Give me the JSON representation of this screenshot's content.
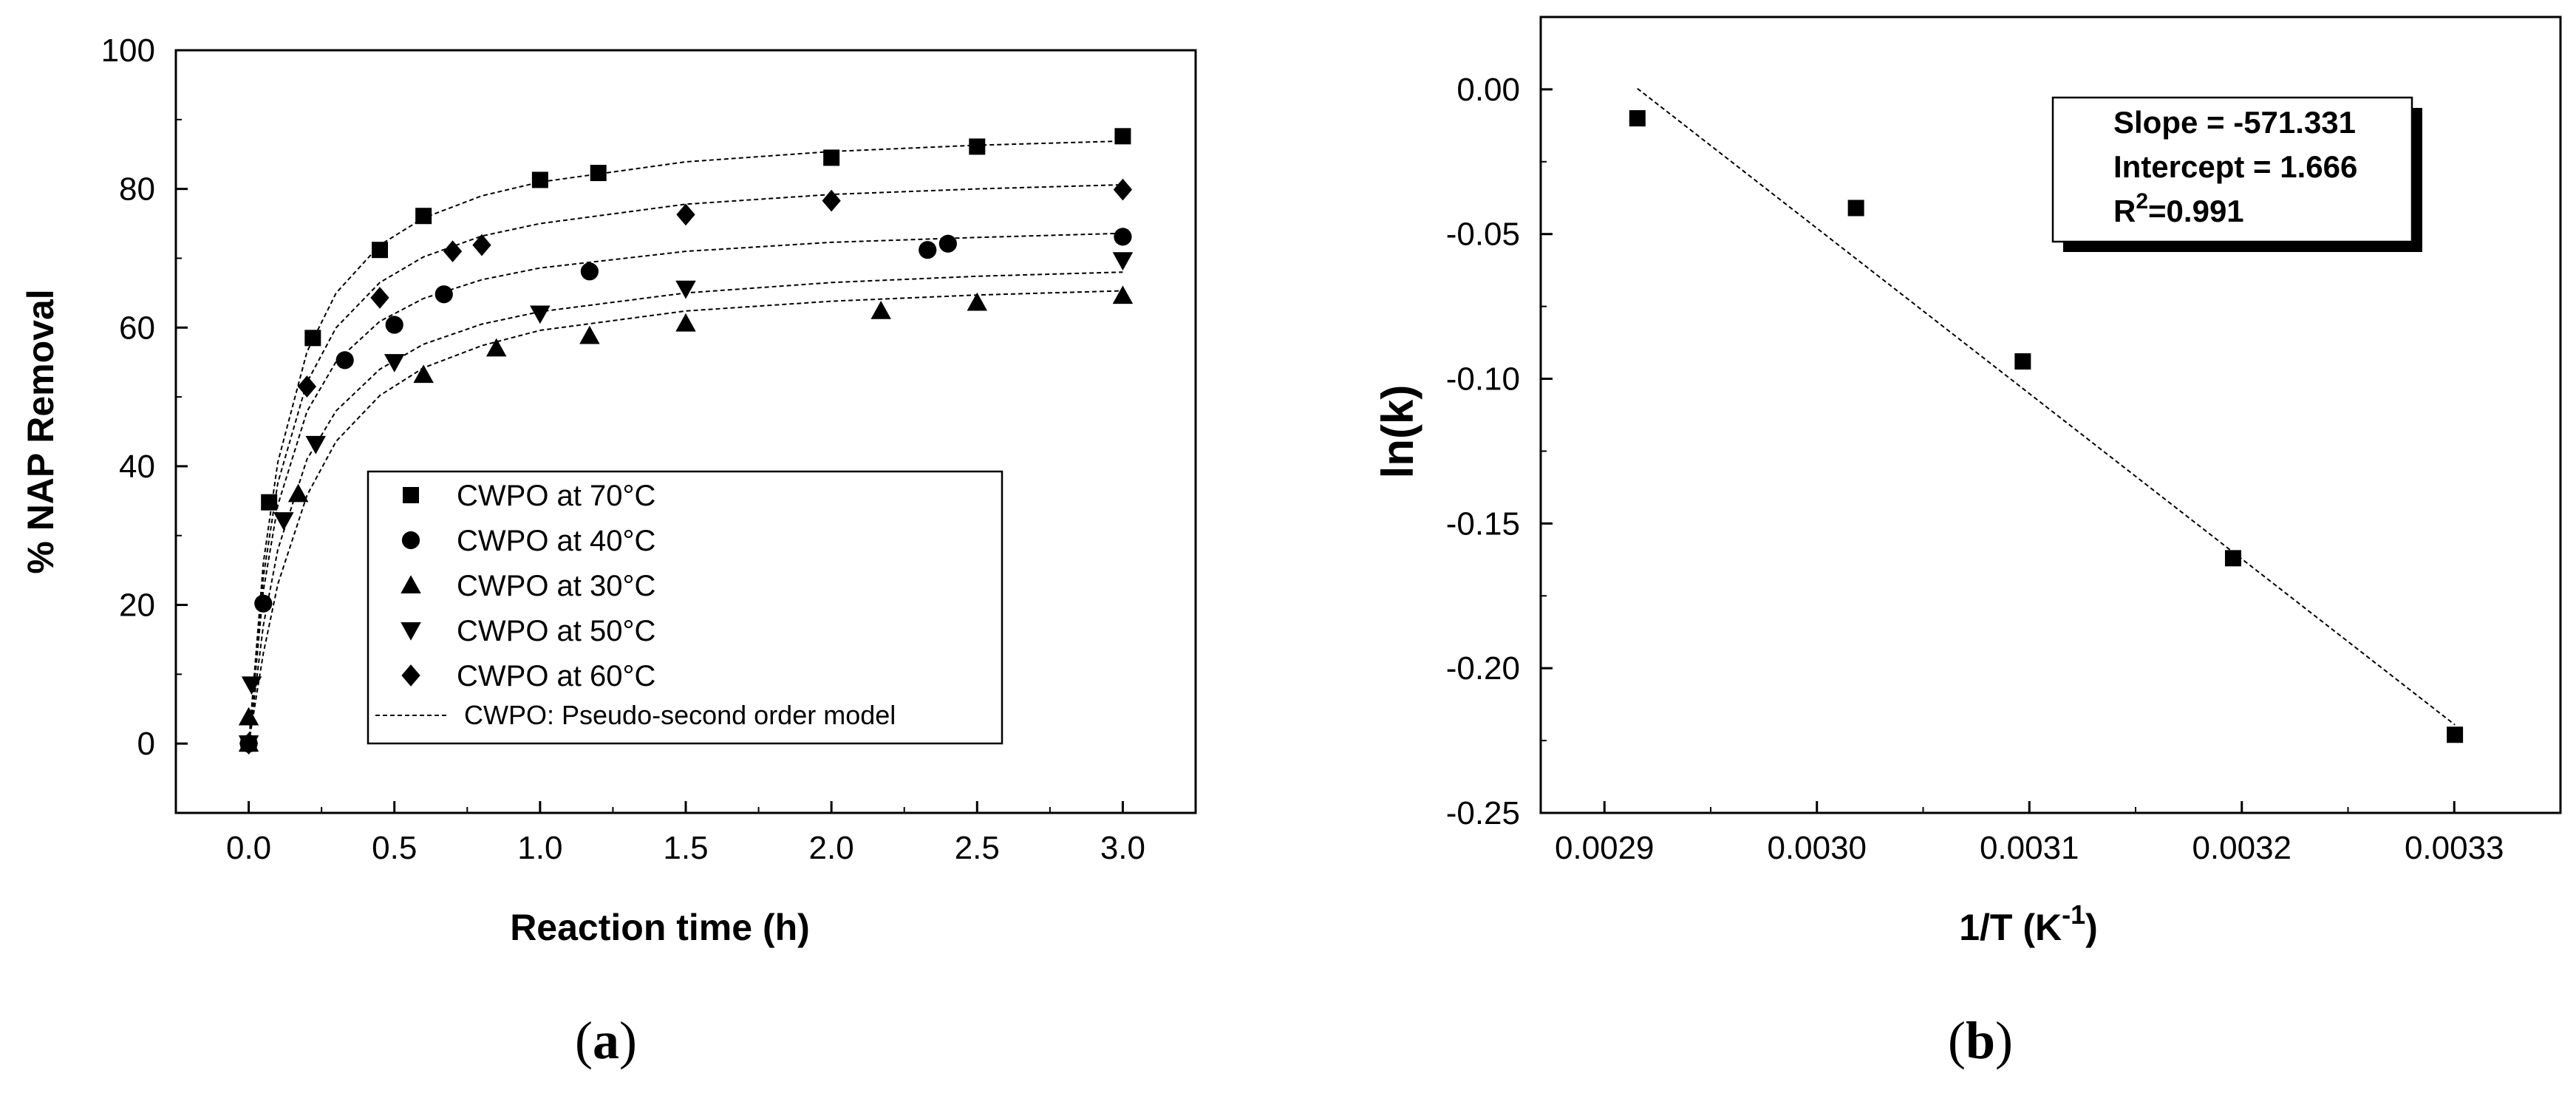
{
  "chart_data": [
    {
      "panel": "a",
      "type": "scatter",
      "caption_letter": "a",
      "xlabel": "Reaction time (h)",
      "ylabel": "% NAP Removal",
      "xlim": [
        -0.25,
        3.25
      ],
      "ylim": [
        -10,
        100
      ],
      "xticks": [
        "0.0",
        "0.5",
        "1.0",
        "1.5",
        "2.0",
        "2.5",
        "3.0"
      ],
      "yticks": [
        "0",
        "20",
        "40",
        "60",
        "80",
        "100"
      ],
      "series": [
        {
          "name": "CWPO at 70°C",
          "marker": "square",
          "x": [
            0,
            0.07,
            0.22,
            0.45,
            0.6,
            1.0,
            1.2,
            2.0,
            2.5,
            3.0
          ],
          "y": [
            0,
            34.8,
            58.5,
            71.2,
            76.1,
            81.3,
            82.3,
            84.5,
            86.1,
            87.6
          ]
        },
        {
          "name": "CWPO at 40°C",
          "marker": "circle",
          "x": [
            0,
            0.05,
            0.33,
            0.5,
            0.67,
            1.17,
            2.33,
            2.4,
            3.0
          ],
          "y": [
            0,
            20.2,
            55.3,
            60.4,
            64.8,
            68.1,
            71.2,
            72.1,
            73.1
          ]
        },
        {
          "name": "CWPO at 30°C",
          "marker": "triangle-up",
          "x": [
            0,
            0.0,
            0.17,
            0.6,
            0.85,
            1.17,
            1.5,
            2.17,
            2.5,
            3.0
          ],
          "y": [
            0,
            3.8,
            36.0,
            53.2,
            57.0,
            58.8,
            60.6,
            62.4,
            63.6,
            64.6
          ]
        },
        {
          "name": "CWPO at 50°C",
          "marker": "triangle-down",
          "x": [
            0,
            0.01,
            0.12,
            0.23,
            0.5,
            1.0,
            1.5,
            3.0
          ],
          "y": [
            0,
            8.5,
            32.2,
            43.2,
            55.0,
            62.0,
            65.6,
            69.7
          ]
        },
        {
          "name": "CWPO at 60°C",
          "marker": "diamond",
          "x": [
            0,
            0.2,
            0.45,
            0.7,
            0.8,
            1.5,
            2.0,
            3.0
          ],
          "y": [
            0,
            51.5,
            64.3,
            71.0,
            71.9,
            76.3,
            78.3,
            79.9
          ]
        },
        {
          "name": "CWPO: Pseudo-second order model",
          "marker": "dashed-line"
        }
      ],
      "model_curves": [
        {
          "x": [
            0,
            0.05,
            0.1,
            0.2,
            0.3,
            0.45,
            0.6,
            0.8,
            1.0,
            1.5,
            2.0,
            2.5,
            3.0
          ],
          "y": [
            0,
            26,
            40.6,
            56.5,
            65.0,
            71.9,
            75.8,
            79.0,
            81.0,
            83.9,
            85.4,
            86.3,
            86.9
          ]
        },
        {
          "x": [
            0,
            0.05,
            0.1,
            0.2,
            0.3,
            0.45,
            0.6,
            0.8,
            1.0,
            1.5,
            2.0,
            2.5,
            3.0
          ],
          "y": [
            0,
            22,
            34.4,
            47.9,
            55.1,
            60.9,
            64.2,
            66.9,
            68.6,
            71.0,
            72.3,
            73.0,
            73.6
          ]
        },
        {
          "x": [
            0,
            0.05,
            0.1,
            0.2,
            0.3,
            0.45,
            0.6,
            0.8,
            1.0,
            1.5,
            2.0,
            2.5,
            3.0
          ],
          "y": [
            0,
            13,
            23.0,
            35.8,
            43.6,
            50.2,
            54.2,
            57.4,
            59.6,
            62.4,
            63.8,
            64.7,
            65.3
          ]
        },
        {
          "x": [
            0,
            0.05,
            0.1,
            0.2,
            0.3,
            0.45,
            0.6,
            0.8,
            1.0,
            1.5,
            2.0,
            2.5,
            3.0
          ],
          "y": [
            0,
            17,
            28.0,
            41.0,
            48.0,
            54.0,
            57.6,
            60.5,
            62.3,
            65.0,
            66.5,
            67.4,
            68.0
          ]
        },
        {
          "x": [
            0,
            0.05,
            0.1,
            0.2,
            0.3,
            0.45,
            0.6,
            0.8,
            1.0,
            1.5,
            2.0,
            2.5,
            3.0
          ],
          "y": [
            0,
            24,
            37.6,
            52.1,
            60.0,
            66.5,
            70.2,
            73.2,
            75.0,
            77.8,
            79.2,
            80.0,
            80.6
          ]
        }
      ]
    },
    {
      "panel": "b",
      "type": "scatter",
      "caption_letter": "b",
      "xlabel_main": "1/T (K",
      "xlabel_sup": "-1",
      "xlabel_close": ")",
      "ylabel": "ln(k)",
      "xlim": [
        0.00287,
        0.00335
      ],
      "ylim": [
        -0.25,
        0.025
      ],
      "xticks": [
        "0.0029",
        "0.0030",
        "0.0031",
        "0.0032",
        "0.0033"
      ],
      "yticks": [
        "0.00",
        "-0.05",
        "-0.10",
        "-0.15",
        "-0.20",
        "-0.25"
      ],
      "points": {
        "x": [
          0.0029155,
          0.0030184,
          0.0030969,
          0.0031959,
          0.0033003
        ],
        "y": [
          -0.01,
          -0.041,
          -0.094,
          -0.162,
          -0.223
        ]
      },
      "fit": {
        "slope": -571.331,
        "intercept": 1.666
      },
      "annotation": {
        "slope_label": "Slope = -571.331",
        "intercept_label": "Intercept = 1.666",
        "r2_prefix": "R",
        "r2_sup": "2",
        "r2_value": "=0.991"
      }
    }
  ]
}
